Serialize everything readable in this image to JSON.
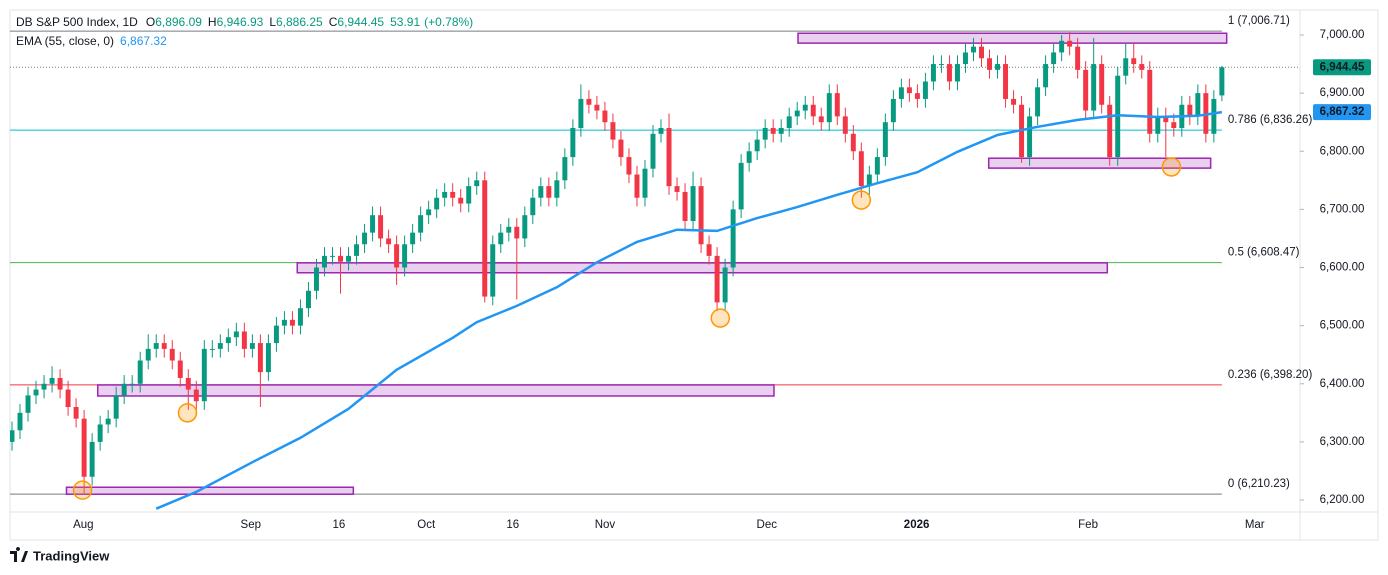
{
  "chart_data": {
    "type": "candlestick",
    "legend": {
      "symbol": "DB S&P 500 Index, 1D",
      "fields": [
        {
          "name": "O",
          "value": 6896.09,
          "label": "6,896.09"
        },
        {
          "name": "H",
          "value": 6946.93,
          "label": "6,946.93"
        },
        {
          "name": "L",
          "value": 6886.25,
          "label": "6,886.25"
        },
        {
          "name": "C",
          "value": 6944.45,
          "label": "6,944.45"
        }
      ],
      "change": 53.91,
      "change_pct": {
        "value": 0.78,
        "label": "(+0.78%)"
      }
    },
    "up_color": "#089981",
    "down_color": "#f23645",
    "open": [
      6300,
      6320,
      6350,
      6380,
      6390,
      6400,
      6410,
      6390,
      6360,
      6340,
      6240,
      6300,
      6330,
      6340,
      6380,
      6400,
      6400,
      6440,
      6460,
      6470,
      6460,
      6440,
      6410,
      6390,
      6370,
      6460,
      6460,
      6470,
      6480,
      6490,
      6460,
      6470,
      6420,
      6470,
      6500,
      6510,
      6500,
      6530,
      6560,
      6600,
      6620,
      6620,
      6610,
      6620,
      6640,
      6660,
      6690,
      6650,
      6640,
      6600,
      6640,
      6660,
      6690,
      6700,
      6720,
      6730,
      6720,
      6710,
      6740,
      6750,
      6550,
      6640,
      6660,
      6670,
      6650,
      6690,
      6720,
      6740,
      6720,
      6750,
      6790,
      6840,
      6890,
      6880,
      6870,
      6850,
      6820,
      6790,
      6760,
      6720,
      6770,
      6830,
      6840,
      6740,
      6730,
      6680,
      6740,
      6640,
      6620,
      6540,
      6600,
      6700,
      6780,
      6800,
      6820,
      6840,
      6830,
      6840,
      6860,
      6870,
      6880,
      6860,
      6850,
      6900,
      6860,
      6830,
      6800,
      6740,
      6760,
      6790,
      6850,
      6890,
      6910,
      6900,
      6890,
      6920,
      6950,
      6950,
      6920,
      6950,
      6970,
      6980,
      6960,
      6940,
      6950,
      6890,
      6880,
      6790,
      6860,
      6910,
      6950,
      6970,
      6990,
      6980,
      6940,
      6870,
      6950,
      6880,
      6790,
      6930,
      6960,
      6950,
      6940,
      6830,
      6860,
      6850,
      6840,
      6880,
      6860,
      6900,
      6830,
      6896.09
    ],
    "high": [
      6335,
      6365,
      6395,
      6405,
      6415,
      6430,
      6425,
      6405,
      6375,
      6355,
      6315,
      6345,
      6355,
      6395,
      6415,
      6415,
      6455,
      6485,
      6485,
      6485,
      6475,
      6455,
      6425,
      6405,
      6475,
      6475,
      6485,
      6495,
      6505,
      6505,
      6485,
      6485,
      6485,
      6515,
      6525,
      6525,
      6545,
      6575,
      6615,
      6635,
      6635,
      6635,
      6635,
      6655,
      6675,
      6705,
      6705,
      6665,
      6655,
      6655,
      6675,
      6705,
      6715,
      6735,
      6745,
      6745,
      6735,
      6755,
      6765,
      6765,
      6655,
      6675,
      6685,
      6685,
      6705,
      6735,
      6755,
      6755,
      6765,
      6805,
      6855,
      6915,
      6905,
      6895,
      6885,
      6865,
      6835,
      6805,
      6775,
      6785,
      6845,
      6855,
      6865,
      6755,
      6745,
      6765,
      6755,
      6655,
      6635,
      6615,
      6715,
      6795,
      6815,
      6835,
      6855,
      6855,
      6855,
      6875,
      6885,
      6895,
      6895,
      6875,
      6915,
      6915,
      6875,
      6845,
      6815,
      6775,
      6805,
      6865,
      6905,
      6925,
      6925,
      6915,
      6935,
      6965,
      6965,
      6965,
      6965,
      6985,
      6995,
      6995,
      6975,
      6965,
      6965,
      6905,
      6895,
      6875,
      6925,
      6965,
      6985,
      7000,
      7005,
      6995,
      6955,
      6995,
      6965,
      6895,
      6945,
      6985,
      6985,
      6965,
      6955,
      6875,
      6875,
      6865,
      6895,
      6895,
      6915,
      6915,
      6905,
      6946.93
    ],
    "low": [
      6285,
      6305,
      6335,
      6365,
      6375,
      6385,
      6375,
      6345,
      6325,
      6212,
      6225,
      6285,
      6315,
      6325,
      6365,
      6385,
      6385,
      6425,
      6445,
      6445,
      6425,
      6395,
      6355,
      6355,
      6355,
      6445,
      6445,
      6455,
      6465,
      6445,
      6445,
      6360,
      6405,
      6455,
      6485,
      6485,
      6485,
      6515,
      6545,
      6585,
      6605,
      6555,
      6595,
      6605,
      6625,
      6645,
      6635,
      6625,
      6570,
      6585,
      6625,
      6645,
      6675,
      6685,
      6705,
      6705,
      6695,
      6695,
      6725,
      6540,
      6535,
      6625,
      6645,
      6545,
      6635,
      6675,
      6705,
      6705,
      6705,
      6735,
      6775,
      6825,
      6865,
      6855,
      6835,
      6805,
      6775,
      6745,
      6705,
      6705,
      6755,
      6815,
      6725,
      6715,
      6665,
      6665,
      6625,
      6605,
      6525,
      6525,
      6585,
      6685,
      6765,
      6785,
      6805,
      6815,
      6815,
      6825,
      6845,
      6855,
      6845,
      6835,
      6835,
      6845,
      6815,
      6785,
      6720,
      6725,
      6745,
      6775,
      6835,
      6875,
      6885,
      6875,
      6875,
      6905,
      6935,
      6905,
      6905,
      6935,
      6955,
      6945,
      6925,
      6925,
      6875,
      6865,
      6780,
      6775,
      6845,
      6895,
      6935,
      6955,
      6965,
      6925,
      6855,
      6855,
      6865,
      6775,
      6775,
      6915,
      6935,
      6925,
      6815,
      6815,
      6790,
      6825,
      6825,
      6845,
      6845,
      6815,
      6815,
      6886.25
    ],
    "close": [
      6320,
      6350,
      6380,
      6390,
      6400,
      6410,
      6390,
      6360,
      6340,
      6240,
      6300,
      6330,
      6340,
      6380,
      6400,
      6400,
      6440,
      6460,
      6470,
      6460,
      6440,
      6410,
      6390,
      6370,
      6460,
      6460,
      6470,
      6480,
      6490,
      6460,
      6470,
      6420,
      6470,
      6500,
      6510,
      6500,
      6530,
      6560,
      6600,
      6620,
      6620,
      6610,
      6620,
      6640,
      6660,
      6690,
      6650,
      6640,
      6600,
      6640,
      6660,
      6690,
      6700,
      6720,
      6730,
      6720,
      6710,
      6740,
      6750,
      6550,
      6640,
      6660,
      6670,
      6650,
      6690,
      6720,
      6740,
      6720,
      6750,
      6790,
      6840,
      6890,
      6880,
      6870,
      6850,
      6820,
      6790,
      6760,
      6720,
      6770,
      6830,
      6840,
      6740,
      6730,
      6680,
      6740,
      6640,
      6620,
      6540,
      6600,
      6700,
      6780,
      6800,
      6820,
      6840,
      6830,
      6840,
      6860,
      6870,
      6880,
      6860,
      6850,
      6900,
      6860,
      6830,
      6800,
      6740,
      6760,
      6790,
      6850,
      6890,
      6910,
      6900,
      6890,
      6920,
      6950,
      6950,
      6920,
      6950,
      6970,
      6980,
      6960,
      6940,
      6950,
      6890,
      6880,
      6790,
      6860,
      6910,
      6950,
      6970,
      6990,
      6980,
      6940,
      6870,
      6950,
      6880,
      6790,
      6930,
      6960,
      6950,
      6940,
      6830,
      6860,
      6850,
      6840,
      6880,
      6860,
      6900,
      6830,
      6890,
      6944.45
    ],
    "last_price": {
      "value": 6944.45,
      "label": "6,944.45"
    },
    "ema": {
      "name": "EMA (55, close, 0)",
      "color": "#2196f3",
      "last": {
        "value": 6867.32,
        "label": "6,867.32"
      },
      "x": [
        18,
        23,
        30,
        36,
        42,
        48,
        55,
        58,
        63,
        68,
        73,
        78,
        83,
        88,
        93,
        98,
        103,
        108,
        113,
        118,
        123,
        128,
        133,
        138,
        143,
        148,
        151
      ],
      "values": [
        6185,
        6214,
        6265,
        6307,
        6357,
        6424,
        6479,
        6506,
        6534,
        6566,
        6609,
        6644,
        6665,
        6663,
        6685,
        6704,
        6725,
        6745,
        6764,
        6799,
        6828,
        6842,
        6854,
        6862,
        6859,
        6861,
        6867.32
      ]
    },
    "fib_levels": [
      {
        "value": 7006.71,
        "label": "1 (7,006.71)",
        "color": "#787b86"
      },
      {
        "value": 6836.26,
        "label": "0.786 (6,836.26)",
        "color": "#00bcd4"
      },
      {
        "value": 6608.47,
        "label": "0.5 (6,608.47)",
        "color": "#4caf50"
      },
      {
        "value": 6398.2,
        "label": "0.236 (6,398.20)",
        "color": "#f23645"
      },
      {
        "value": 6210.23,
        "label": "0 (6,210.23)",
        "color": "#787b86"
      }
    ],
    "zones": [
      {
        "x": [
          98.1,
          151.6
        ],
        "y": [
          6986,
          7003
        ]
      },
      {
        "x": [
          121.9,
          149.6
        ],
        "y": [
          6771,
          6788
        ]
      },
      {
        "x": [
          35.6,
          136.7
        ],
        "y": [
          6591,
          6608
        ]
      },
      {
        "x": [
          10.7,
          95.1
        ],
        "y": [
          6379,
          6398
        ]
      },
      {
        "x": [
          6.8,
          42.6
        ],
        "y": [
          6210,
          6222
        ]
      }
    ],
    "zone_color": "#9c27b0",
    "markers": [
      {
        "x": 8.8,
        "y": 6217
      },
      {
        "x": 21.9,
        "y": 6350
      },
      {
        "x": 88.4,
        "y": 6513
      },
      {
        "x": 106,
        "y": 6716
      },
      {
        "x": 144.7,
        "y": 6773
      }
    ],
    "marker_color": "#ff9800",
    "xlim": [
      -0.25,
      160.75
    ],
    "xticks": [
      {
        "value": 8.9,
        "label": "Aug"
      },
      {
        "value": 29.8,
        "label": "Sep"
      },
      {
        "value": 40.8,
        "label": "16"
      },
      {
        "value": 51.7,
        "label": "Oct"
      },
      {
        "value": 62.5,
        "label": "16"
      },
      {
        "value": 74.0,
        "label": "Nov"
      },
      {
        "value": 94.2,
        "label": "Dec"
      },
      {
        "value": 112.9,
        "label": "2026"
      },
      {
        "value": 134.3,
        "label": "Feb"
      },
      {
        "value": 155.1,
        "label": "Mar"
      }
    ],
    "ylim": [
      6179.4,
      7043
    ],
    "yticks": [
      {
        "value": 6200,
        "label": "6,200.00"
      },
      {
        "value": 6300,
        "label": "6,300.00"
      },
      {
        "value": 6400,
        "label": "6,400.00"
      },
      {
        "value": 6500,
        "label": "6,500.00"
      },
      {
        "value": 6600,
        "label": "6,600.00"
      },
      {
        "value": 6700,
        "label": "6,700.00"
      },
      {
        "value": 6800,
        "label": "6,800.00"
      },
      {
        "value": 6900,
        "label": "6,900.00"
      },
      {
        "value": 7000,
        "label": "7,000.00"
      }
    ],
    "brand": "TradingView"
  }
}
